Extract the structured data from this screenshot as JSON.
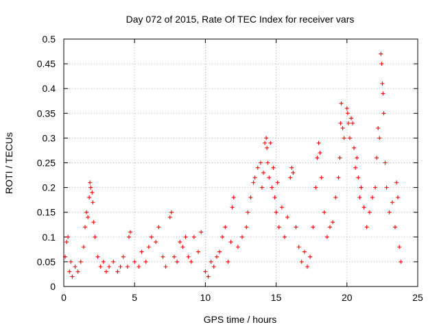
{
  "chart_data": {
    "type": "scatter",
    "title": "Day 072 of 2015, Rate Of TEC Index for receiver vars",
    "xlabel": "GPS time / hours",
    "ylabel": "ROTI / TECUs",
    "xlim": [
      0,
      25
    ],
    "ylim": [
      0,
      0.5
    ],
    "x_ticks": [
      "0",
      "5",
      "10",
      "15",
      "20",
      "25"
    ],
    "x_tick_values": [
      0,
      5,
      10,
      15,
      20,
      25
    ],
    "y_ticks": [
      "0",
      "0.05",
      "0.1",
      "0.15",
      "0.2",
      "0.25",
      "0.3",
      "0.35",
      "0.4",
      "0.45",
      "0.5"
    ],
    "y_tick_values": [
      0,
      0.05,
      0.1,
      0.15,
      0.2,
      0.25,
      0.3,
      0.35,
      0.4,
      0.45,
      0.5
    ],
    "grid": true,
    "marker": "+",
    "marker_color": "#ff0000",
    "series": [
      {
        "name": "ROTI",
        "points": [
          [
            0.1,
            0.06
          ],
          [
            0.2,
            0.09
          ],
          [
            0.3,
            0.1
          ],
          [
            0.4,
            0.03
          ],
          [
            0.5,
            0.05
          ],
          [
            0.6,
            0.02
          ],
          [
            0.8,
            0.04
          ],
          [
            1.0,
            0.03
          ],
          [
            1.2,
            0.05
          ],
          [
            1.4,
            0.08
          ],
          [
            1.5,
            0.12
          ],
          [
            1.6,
            0.15
          ],
          [
            1.7,
            0.14
          ],
          [
            1.8,
            0.18
          ],
          [
            1.85,
            0.21
          ],
          [
            1.9,
            0.2
          ],
          [
            2.0,
            0.19
          ],
          [
            2.05,
            0.17
          ],
          [
            2.1,
            0.13
          ],
          [
            2.2,
            0.1
          ],
          [
            2.4,
            0.06
          ],
          [
            2.6,
            0.04
          ],
          [
            2.8,
            0.05
          ],
          [
            3.0,
            0.03
          ],
          [
            3.2,
            0.04
          ],
          [
            3.5,
            0.05
          ],
          [
            3.8,
            0.03
          ],
          [
            4.0,
            0.04
          ],
          [
            4.2,
            0.06
          ],
          [
            4.5,
            0.04
          ],
          [
            4.6,
            0.1
          ],
          [
            4.7,
            0.11
          ],
          [
            5.0,
            0.05
          ],
          [
            5.3,
            0.04
          ],
          [
            5.5,
            0.07
          ],
          [
            5.8,
            0.05
          ],
          [
            6.0,
            0.08
          ],
          [
            6.2,
            0.1
          ],
          [
            6.5,
            0.09
          ],
          [
            6.7,
            0.12
          ],
          [
            7.0,
            0.06
          ],
          [
            7.2,
            0.04
          ],
          [
            7.5,
            0.14
          ],
          [
            7.6,
            0.15
          ],
          [
            7.8,
            0.06
          ],
          [
            8.0,
            0.05
          ],
          [
            8.2,
            0.09
          ],
          [
            8.4,
            0.08
          ],
          [
            8.6,
            0.1
          ],
          [
            8.8,
            0.06
          ],
          [
            9.0,
            0.05
          ],
          [
            9.2,
            0.1
          ],
          [
            9.5,
            0.07
          ],
          [
            9.7,
            0.11
          ],
          [
            10.0,
            0.03
          ],
          [
            10.2,
            0.02
          ],
          [
            10.4,
            0.05
          ],
          [
            10.6,
            0.04
          ],
          [
            10.8,
            0.06
          ],
          [
            11.0,
            0.07
          ],
          [
            11.2,
            0.1
          ],
          [
            11.4,
            0.12
          ],
          [
            11.6,
            0.05
          ],
          [
            11.8,
            0.09
          ],
          [
            11.9,
            0.16
          ],
          [
            12.0,
            0.18
          ],
          [
            12.3,
            0.08
          ],
          [
            12.6,
            0.1
          ],
          [
            12.9,
            0.12
          ],
          [
            13.0,
            0.15
          ],
          [
            13.2,
            0.18
          ],
          [
            13.4,
            0.21
          ],
          [
            13.5,
            0.22
          ],
          [
            13.7,
            0.24
          ],
          [
            13.9,
            0.25
          ],
          [
            14.0,
            0.2
          ],
          [
            14.1,
            0.23
          ],
          [
            14.2,
            0.29
          ],
          [
            14.3,
            0.3
          ],
          [
            14.35,
            0.28
          ],
          [
            14.4,
            0.25
          ],
          [
            14.5,
            0.22
          ],
          [
            14.6,
            0.29
          ],
          [
            14.7,
            0.2
          ],
          [
            14.8,
            0.24
          ],
          [
            14.9,
            0.18
          ],
          [
            15.0,
            0.15
          ],
          [
            15.1,
            0.21
          ],
          [
            15.2,
            0.12
          ],
          [
            15.4,
            0.16
          ],
          [
            15.6,
            0.1
          ],
          [
            15.8,
            0.14
          ],
          [
            16.0,
            0.22
          ],
          [
            16.1,
            0.24
          ],
          [
            16.2,
            0.23
          ],
          [
            16.4,
            0.12
          ],
          [
            16.6,
            0.08
          ],
          [
            16.8,
            0.05
          ],
          [
            17.0,
            0.07
          ],
          [
            17.2,
            0.04
          ],
          [
            17.4,
            0.06
          ],
          [
            17.6,
            0.12
          ],
          [
            17.8,
            0.2
          ],
          [
            17.9,
            0.26
          ],
          [
            18.0,
            0.29
          ],
          [
            18.1,
            0.27
          ],
          [
            18.2,
            0.22
          ],
          [
            18.4,
            0.15
          ],
          [
            18.6,
            0.1
          ],
          [
            18.8,
            0.12
          ],
          [
            19.0,
            0.13
          ],
          [
            19.2,
            0.18
          ],
          [
            19.4,
            0.22
          ],
          [
            19.5,
            0.26
          ],
          [
            19.55,
            0.33
          ],
          [
            19.6,
            0.37
          ],
          [
            19.7,
            0.32
          ],
          [
            19.8,
            0.3
          ],
          [
            20.0,
            0.36
          ],
          [
            20.05,
            0.35
          ],
          [
            20.1,
            0.33
          ],
          [
            20.2,
            0.3
          ],
          [
            20.3,
            0.34
          ],
          [
            20.4,
            0.33
          ],
          [
            20.5,
            0.28
          ],
          [
            20.6,
            0.24
          ],
          [
            20.7,
            0.26
          ],
          [
            20.8,
            0.22
          ],
          [
            20.9,
            0.18
          ],
          [
            21.0,
            0.2
          ],
          [
            21.2,
            0.16
          ],
          [
            21.4,
            0.12
          ],
          [
            21.6,
            0.15
          ],
          [
            21.8,
            0.18
          ],
          [
            22.0,
            0.2
          ],
          [
            22.1,
            0.26
          ],
          [
            22.2,
            0.32
          ],
          [
            22.3,
            0.3
          ],
          [
            22.4,
            0.47
          ],
          [
            22.45,
            0.45
          ],
          [
            22.5,
            0.41
          ],
          [
            22.55,
            0.39
          ],
          [
            22.6,
            0.35
          ],
          [
            22.7,
            0.25
          ],
          [
            22.8,
            0.2
          ],
          [
            23.0,
            0.15
          ],
          [
            23.2,
            0.17
          ],
          [
            23.4,
            0.12
          ],
          [
            23.5,
            0.21
          ],
          [
            23.6,
            0.18
          ],
          [
            23.7,
            0.08
          ],
          [
            23.8,
            0.05
          ]
        ]
      }
    ]
  }
}
